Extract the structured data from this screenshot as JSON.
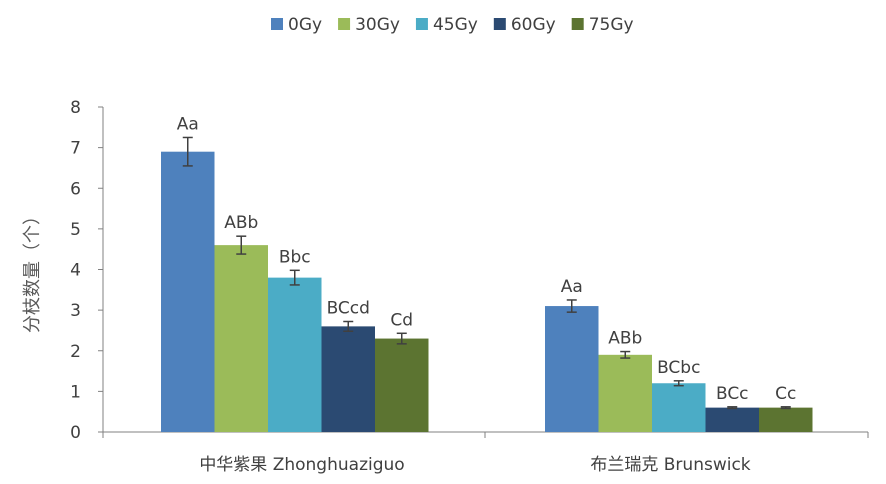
{
  "chart_data": {
    "type": "bar",
    "title": "",
    "xlabel": "",
    "ylabel": "分枝数量（个）",
    "ylim": [
      0,
      8
    ],
    "yticks": [
      0,
      1,
      2,
      3,
      4,
      5,
      6,
      7,
      8
    ],
    "categories": [
      "中华紫果 Zhonghuaziguo",
      "布兰瑞克 Brunswick"
    ],
    "legend_position": "top",
    "grid": false,
    "series": [
      {
        "name": "0Gy",
        "color": "#4E81BD",
        "values": [
          6.9,
          3.1
        ],
        "errors": [
          0.35,
          0.15
        ],
        "labels": [
          "Aa",
          "Aa"
        ]
      },
      {
        "name": "30Gy",
        "color": "#9BBB59",
        "values": [
          4.6,
          1.9
        ],
        "errors": [
          0.22,
          0.08
        ],
        "labels": [
          "ABb",
          "ABb"
        ]
      },
      {
        "name": "45Gy",
        "color": "#4BACC6",
        "values": [
          3.8,
          1.2
        ],
        "errors": [
          0.18,
          0.06
        ],
        "labels": [
          "Bbc",
          "BCbc"
        ]
      },
      {
        "name": "60Gy",
        "color": "#2B4A72",
        "values": [
          2.6,
          0.6
        ],
        "errors": [
          0.12,
          0.02
        ],
        "labels": [
          "BCcd",
          "BCc"
        ]
      },
      {
        "name": "75Gy",
        "color": "#5C7431",
        "values": [
          2.3,
          0.6
        ],
        "errors": [
          0.13,
          0.02
        ],
        "labels": [
          "Cd",
          "Cc"
        ]
      }
    ]
  }
}
